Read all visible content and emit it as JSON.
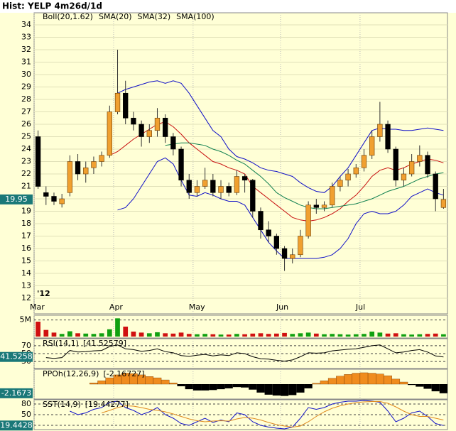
{
  "title": "Hist: YELP 4m26d/1d",
  "chart_data": [
    {
      "type": "candlestick",
      "categories": [
        "Mar",
        null,
        null,
        null,
        null,
        null,
        null,
        null,
        null,
        null,
        "Apr",
        null,
        null,
        null,
        null,
        null,
        null,
        null,
        null,
        null,
        "May",
        null,
        null,
        null,
        null,
        null,
        null,
        null,
        null,
        null,
        null,
        "Jun",
        null,
        null,
        null,
        null,
        null,
        null,
        null,
        null,
        null,
        "Jul",
        null,
        null,
        null,
        null,
        null,
        null,
        null,
        null,
        null,
        null
      ],
      "year_label": "'12",
      "open": [
        25,
        20.5,
        20.2,
        19.6,
        20.5,
        23,
        22,
        22.5,
        23,
        23.5,
        27,
        28.5,
        26.5,
        26,
        25,
        25.5,
        26.5,
        25,
        24,
        21.5,
        20.5,
        21,
        21.5,
        20.5,
        21,
        20.5,
        21.8,
        21.5,
        19,
        17.5,
        17,
        16,
        15.2,
        15.5,
        17,
        19.5,
        19.3,
        19.5,
        21,
        21.5,
        22,
        22.5,
        23.5,
        25,
        26,
        24,
        21.5,
        22,
        23,
        23.5,
        22,
        19.3
      ],
      "high": [
        25.5,
        21,
        20.5,
        20.4,
        23.5,
        23.6,
        23,
        23.4,
        23.8,
        27.5,
        32,
        29.5,
        27,
        26.3,
        26,
        27.3,
        26.8,
        25.3,
        24.2,
        22,
        21.5,
        22.5,
        22,
        21.5,
        21.3,
        22.3,
        22,
        21.6,
        19.3,
        18.2,
        17.2,
        16.2,
        16,
        17.5,
        19.8,
        20,
        19.8,
        21.3,
        21.8,
        22.4,
        22.8,
        24,
        25.5,
        27.8,
        26.3,
        24.2,
        22.5,
        23.6,
        24.3,
        23.8,
        22.2,
        20.8
      ],
      "low": [
        20.8,
        19.5,
        19.5,
        19.3,
        20.2,
        21.5,
        21.3,
        22,
        22.6,
        23.3,
        26.8,
        26,
        25.5,
        24.2,
        24.5,
        25,
        24.5,
        23.5,
        21,
        20,
        20.2,
        20.8,
        20.2,
        20,
        20.2,
        20.3,
        20.5,
        18.5,
        16.8,
        16.5,
        15.5,
        14.2,
        14.8,
        15.3,
        16.8,
        18.8,
        19,
        19.3,
        20.6,
        21,
        21.7,
        22.2,
        23.2,
        24.6,
        23.7,
        21,
        21,
        21.8,
        22.6,
        21.7,
        19,
        19.2
      ],
      "close": [
        21,
        20.2,
        19.8,
        20,
        23,
        22,
        22.5,
        23,
        23.5,
        27,
        28.5,
        26.5,
        26,
        25,
        25.5,
        26.5,
        25,
        24,
        21.5,
        20.5,
        21,
        21.5,
        20.5,
        21,
        20.5,
        21.8,
        21.5,
        19,
        17.5,
        17,
        16,
        15.2,
        15.5,
        17,
        19.5,
        19.3,
        19.5,
        21,
        21.5,
        22,
        22.5,
        23.5,
        25,
        26,
        24,
        21.5,
        22,
        23,
        23.5,
        22,
        20,
        19.95
      ],
      "last_price": 19.95,
      "series": [
        {
          "name": "Boll(20,1.62)",
          "color": "#1010c8",
          "upper": [
            null,
            null,
            null,
            null,
            null,
            null,
            null,
            null,
            null,
            null,
            28.5,
            28.8,
            29,
            29.2,
            29.4,
            29.5,
            29.3,
            29.5,
            29.3,
            28.5,
            27.5,
            26.5,
            25.5,
            25,
            24,
            23.4,
            23.2,
            22.9,
            22.5,
            22.3,
            22.2,
            22,
            21.8,
            21.3,
            20.9,
            20.6,
            20.5,
            21,
            21.8,
            22.5,
            23.5,
            24.5,
            25.5,
            25.7,
            25.6,
            25.6,
            25.5,
            25.5,
            25.6,
            25.7,
            25.6,
            25.5
          ],
          "lower": [
            null,
            null,
            null,
            null,
            null,
            null,
            null,
            null,
            null,
            null,
            19.1,
            19.3,
            20,
            21,
            22,
            23,
            23.3,
            22.8,
            21.5,
            20.3,
            20.2,
            20.5,
            20.3,
            20,
            19.8,
            19.8,
            19.5,
            18.5,
            17.5,
            16.5,
            15.8,
            15.2,
            15.2,
            15.2,
            15.2,
            15.2,
            15.3,
            15.5,
            16,
            16.8,
            18,
            18.8,
            19,
            18.8,
            18.8,
            19,
            19.5,
            20.2,
            20.5,
            20.8,
            20.5,
            20.3
          ]
        },
        {
          "name": "SMA(20)",
          "color": "#c81010",
          "values": [
            null,
            null,
            null,
            null,
            null,
            null,
            null,
            null,
            null,
            23.5,
            23.8,
            24.3,
            24.8,
            25.2,
            25.6,
            26,
            26.2,
            25.8,
            25.2,
            24.5,
            24,
            23.5,
            23,
            22.8,
            22.5,
            22.3,
            22,
            21,
            20.5,
            20,
            19.5,
            19,
            18.5,
            18.3,
            18.2,
            18.3,
            18.5,
            18.8,
            19.2,
            19.8,
            20.3,
            21,
            21.8,
            22.3,
            22.5,
            22.3,
            22.5,
            22.8,
            23,
            23.2,
            23.1,
            22.9
          ]
        },
        {
          "name": "SMA(32)",
          "color": "#108050",
          "values": [
            null,
            null,
            null,
            null,
            null,
            null,
            null,
            null,
            null,
            null,
            null,
            null,
            null,
            null,
            null,
            null,
            24.3,
            24.4,
            24.5,
            24.5,
            24.4,
            24.3,
            24,
            23.8,
            23.5,
            23.1,
            22.8,
            22.3,
            21.8,
            21.2,
            20.5,
            20.1,
            19.8,
            19.5,
            19.3,
            19.2,
            19.2,
            19.3,
            19.4,
            19.5,
            19.6,
            19.8,
            20,
            20.3,
            20.6,
            20.8,
            21,
            21.3,
            21.6,
            21.8,
            22,
            22.1
          ]
        },
        {
          "name": "SMA(100)",
          "color": "#909090"
        }
      ],
      "ylim": [
        12,
        34
      ],
      "yticks": [
        12,
        13,
        14,
        15,
        16,
        17,
        18,
        19,
        20,
        21,
        22,
        23,
        24,
        25,
        26,
        27,
        28,
        29,
        30,
        31,
        32,
        33,
        34
      ],
      "grid": true
    },
    {
      "type": "volume",
      "values": [
        4.5,
        2,
        1.2,
        0.8,
        1.6,
        1,
        0.9,
        0.8,
        1,
        2.2,
        5.5,
        3,
        1.5,
        1.2,
        1,
        1.3,
        1,
        0.9,
        1.2,
        0.8,
        0.7,
        0.8,
        0.7,
        0.6,
        0.6,
        0.8,
        0.7,
        0.9,
        1,
        0.8,
        0.9,
        1.1,
        0.8,
        1,
        1.2,
        0.9,
        0.7,
        0.8,
        0.7,
        0.6,
        0.7,
        0.8,
        1.5,
        1.2,
        0.9,
        1,
        0.7,
        0.6,
        0.7,
        0.8,
        0.9,
        0.7
      ],
      "up_color": "#10a010",
      "down_color": "#d01010",
      "ylim": [
        0,
        6
      ],
      "yticks": [
        {
          "value": 5,
          "label": "5M"
        }
      ]
    },
    {
      "type": "line",
      "title": "RSI(14,1)",
      "readout": {
        "value": 41.52579,
        "label": "[41.52579]"
      },
      "last": 41.5258,
      "series": [
        {
          "name": "RSI",
          "color": "#000000",
          "values": [
            null,
            40,
            38,
            40,
            58,
            54,
            55,
            57,
            58,
            68,
            72,
            62,
            60,
            56,
            58,
            62,
            55,
            52,
            45,
            43,
            46,
            48,
            44,
            47,
            45,
            52,
            50,
            42,
            37,
            36,
            33,
            31,
            34,
            42,
            52,
            51,
            52,
            57,
            59,
            61,
            62,
            66,
            70,
            72,
            62,
            52,
            54,
            58,
            60,
            54,
            44,
            41.5258
          ]
        }
      ],
      "ylim": [
        14,
        86
      ],
      "yticks": [
        30,
        50,
        70
      ]
    },
    {
      "type": "histogram",
      "title": "PPOh(12,26,9)",
      "readout": {
        "value": -2.16727,
        "label": "[-2.16727]"
      },
      "last": -2.1673,
      "pos_color": "#f08c1e",
      "neg_color": "#000000",
      "values": [
        null,
        null,
        null,
        null,
        null,
        null,
        null,
        0.3,
        0.8,
        1.5,
        2.2,
        2.6,
        2.5,
        2.2,
        1.8,
        1.5,
        1,
        0.3,
        -0.5,
        -1.2,
        -1.5,
        -1.5,
        -1.4,
        -1.2,
        -1,
        -0.7,
        -0.8,
        -1.3,
        -2,
        -2.5,
        -2.7,
        -2.8,
        -2.6,
        -2,
        -1,
        0.2,
        0.8,
        1.4,
        1.9,
        2.3,
        2.6,
        2.7,
        2.6,
        2.4,
        2,
        1.2,
        0.5,
        -0.2,
        -0.6,
        -1.1,
        -1.7,
        -2.1673
      ],
      "ylim": [
        -3.2,
        3.2
      ]
    },
    {
      "type": "line",
      "title": "SST(14,9)",
      "readout": {
        "value": 19.44277,
        "label": "[19.44277]"
      },
      "last": 19.4428,
      "series": [
        {
          "name": "%K",
          "color": "#1010c8",
          "values": [
            null,
            null,
            null,
            null,
            60,
            50,
            55,
            65,
            70,
            85,
            88,
            70,
            62,
            50,
            58,
            70,
            50,
            40,
            25,
            20,
            30,
            40,
            28,
            35,
            30,
            55,
            50,
            30,
            20,
            15,
            12,
            10,
            15,
            40,
            70,
            65,
            70,
            80,
            85,
            88,
            88,
            90,
            88,
            85,
            60,
            30,
            40,
            55,
            60,
            45,
            25,
            19.4428
          ]
        },
        {
          "name": "%D",
          "color": "#e08a1e",
          "values": [
            null,
            null,
            null,
            null,
            null,
            null,
            null,
            null,
            55,
            62,
            70,
            75,
            74,
            70,
            65,
            62,
            58,
            52,
            45,
            38,
            33,
            30,
            32,
            33,
            32,
            38,
            42,
            40,
            35,
            28,
            22,
            18,
            15,
            18,
            30,
            45,
            58,
            68,
            75,
            80,
            84,
            86,
            87,
            87,
            82,
            72,
            60,
            50,
            45,
            45,
            40,
            35
          ]
        }
      ],
      "ylim": [
        10,
        90
      ],
      "yticks": [
        20,
        50,
        80
      ]
    }
  ]
}
